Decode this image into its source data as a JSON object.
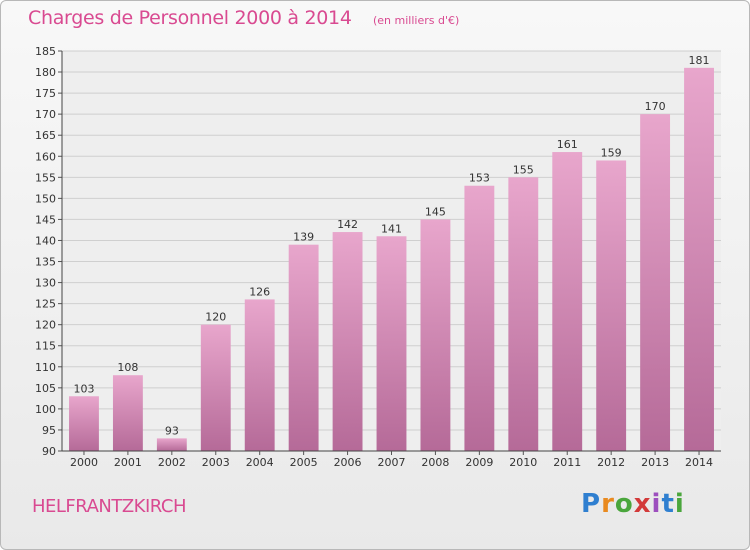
{
  "header": {
    "title": "Charges de Personnel 2000 à 2014",
    "subtitle": "(en milliers d'€)"
  },
  "footer": {
    "commune": "HELFRANTZKIRCH",
    "logo_text": "Proxiti",
    "logo_colors": [
      "#2f7fd0",
      "#e98a1f",
      "#4aa63c",
      "#d33a3a",
      "#9d4fbe"
    ]
  },
  "chart_data": {
    "type": "bar",
    "title": "Charges de Personnel 2000 à 2014",
    "subtitle": "(en milliers d'€)",
    "categories": [
      "2000",
      "2001",
      "2002",
      "2003",
      "2004",
      "2005",
      "2006",
      "2007",
      "2008",
      "2009",
      "2010",
      "2011",
      "2012",
      "2013",
      "2014"
    ],
    "values": [
      103,
      108,
      93,
      120,
      126,
      139,
      142,
      141,
      145,
      153,
      155,
      161,
      159,
      170,
      181
    ],
    "ylim": [
      90,
      185
    ],
    "ytick_step": 5,
    "grid": true,
    "bar_color_top": "#e8a6cc",
    "bar_color_bottom": "#b56a98"
  }
}
